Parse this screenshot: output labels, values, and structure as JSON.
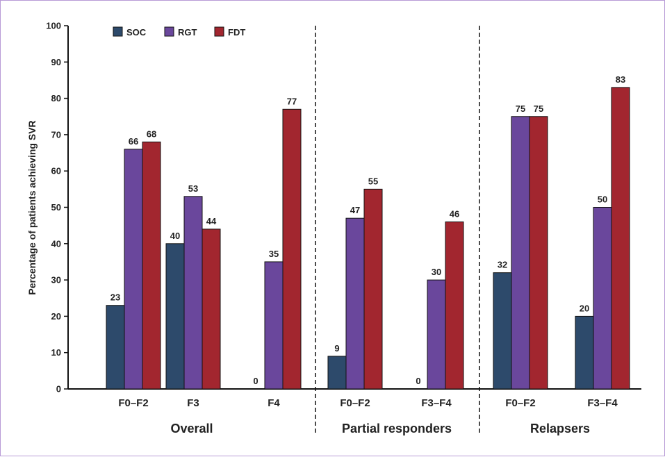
{
  "chart_data": {
    "type": "bar",
    "ylabel": "Percentage of patients achieving SVR",
    "ylim": [
      0,
      100
    ],
    "yticks": [
      0,
      10,
      20,
      30,
      40,
      50,
      60,
      70,
      80,
      90,
      100
    ],
    "legend_position": "top-left",
    "groups": [
      {
        "name": "Overall",
        "categories": [
          "F0–F2",
          "F3",
          "F4"
        ]
      },
      {
        "name": "Partial responders",
        "categories": [
          "F0–F2",
          "F3–F4"
        ]
      },
      {
        "name": "Relapsers",
        "categories": [
          "F0–F2",
          "F3–F4"
        ]
      }
    ],
    "series": [
      {
        "name": "SOC",
        "color": "#2d4a6b",
        "values": [
          23,
          40,
          0,
          9,
          0,
          32,
          20
        ]
      },
      {
        "name": "RGT",
        "color": "#6a479c",
        "values": [
          66,
          53,
          35,
          47,
          30,
          75,
          50
        ]
      },
      {
        "name": "FDT",
        "color": "#a2262f",
        "values": [
          68,
          44,
          77,
          55,
          46,
          75,
          83
        ]
      }
    ]
  }
}
